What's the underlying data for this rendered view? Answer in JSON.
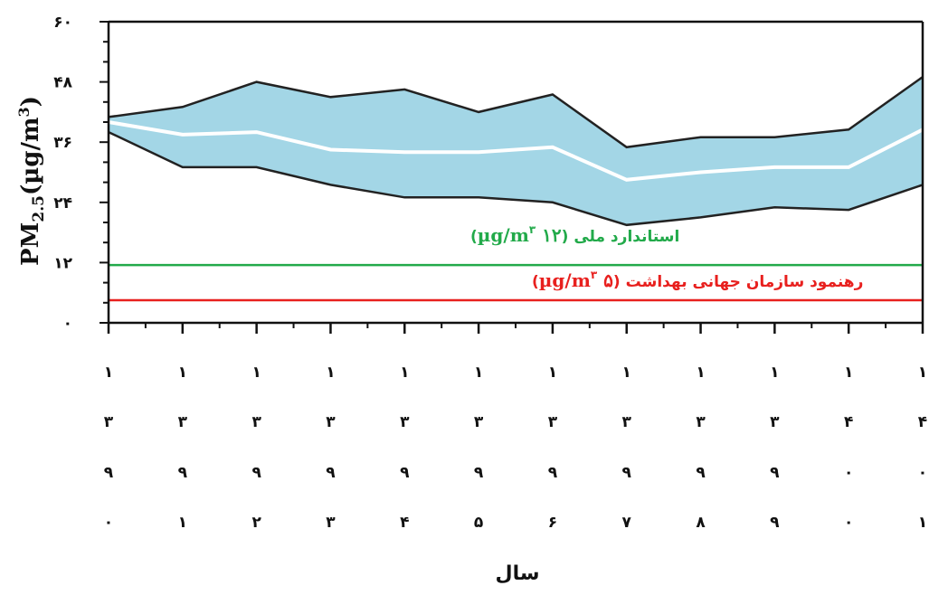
{
  "chart_data": {
    "type": "area",
    "ylabel_main": "PM",
    "ylabel_sub": "2.5",
    "ylabel_rest": "(µg/m",
    "ylabel_sup": "3",
    "ylabel_close": ")",
    "xlabel": "سال",
    "ylim": [
      0,
      60
    ],
    "yticks": [
      {
        "value": 0,
        "label": "۰"
      },
      {
        "value": 12,
        "label": "۱۲"
      },
      {
        "value": 24,
        "label": "۲۴"
      },
      {
        "value": 36,
        "label": "۳۶"
      },
      {
        "value": 48,
        "label": "۴۸"
      },
      {
        "value": 60,
        "label": "۶۰"
      }
    ],
    "x_years": [
      "۱۳۹۰",
      "۱۳۹۱",
      "۱۳۹۲",
      "۱۳۹۳",
      "۱۳۹۴",
      "۱۳۹۵",
      "۱۳۹۶",
      "۱۳۹۷",
      "۱۳۹۸",
      "۱۳۹۹",
      "۱۴۰۰",
      "۱۴۰۱"
    ],
    "series": [
      {
        "role": "upper",
        "values": [
          41.0,
          43.0,
          48.0,
          45.0,
          46.5,
          42.0,
          45.5,
          35.0,
          37.0,
          37.0,
          38.5,
          49.0
        ]
      },
      {
        "role": "center",
        "values": [
          40.0,
          37.5,
          38.0,
          34.5,
          34.0,
          34.0,
          35.0,
          28.5,
          30.0,
          31.0,
          31.0,
          38.5
        ]
      },
      {
        "role": "lower",
        "values": [
          38.0,
          31.0,
          31.0,
          27.5,
          25.0,
          25.0,
          24.0,
          19.5,
          21.0,
          23.0,
          22.5,
          27.5
        ]
      }
    ],
    "reference_lines": [
      {
        "name": "استاندارد ملی",
        "value": 11.5,
        "color": "#22aa4a",
        "label_prefix": "استاندارد ملی (",
        "label_value": "۱۲ µg/m",
        "label_sup": "۳",
        "label_suffix": ")"
      },
      {
        "name": "رهنمود سازمان جهانی بهداشت",
        "value": 4.5,
        "color": "#e8201e",
        "label_prefix": "رهنمود سازمان جهانی بهداشت (",
        "label_value": "۵ µg/m",
        "label_sup": "۳",
        "label_suffix": ")"
      }
    ],
    "colors": {
      "band": "#a3d6e6",
      "band_edge": "#222222",
      "center": "#ffffff"
    },
    "grid": false
  }
}
